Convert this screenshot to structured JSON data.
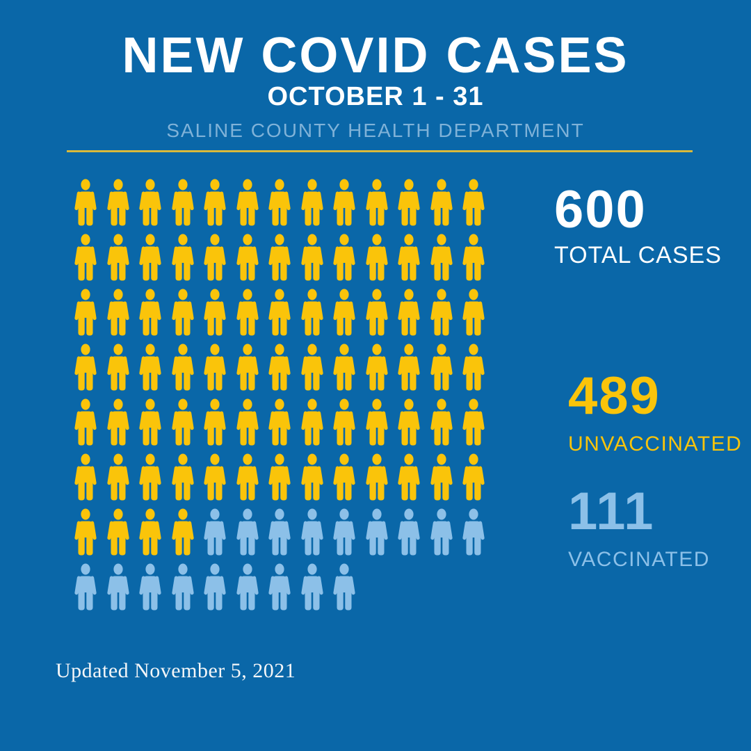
{
  "colors": {
    "background": "#0A67A8",
    "accent_yellow": "#FAC40A",
    "accent_light_blue": "#8CC0E8",
    "subtitle_blue": "#7FB2D8",
    "divider_gold": "#D9B93B",
    "white": "#FFFFFF"
  },
  "header": {
    "title": "NEW COVID CASES",
    "date_range": "OCTOBER 1 - 31",
    "organization": "SALINE COUNTY HEALTH DEPARTMENT"
  },
  "stats": {
    "total": {
      "value": "600",
      "label": "TOTAL CASES"
    },
    "unvaccinated": {
      "value": "489",
      "label": "UNVACCINATED"
    },
    "vaccinated": {
      "value": "111",
      "label": "VACCINATED"
    }
  },
  "footer": {
    "updated": "Updated November 5, 2021"
  },
  "chart_data": {
    "type": "pictogram",
    "title": "NEW COVID CASES",
    "subtitle": "OCTOBER 1 - 31",
    "source": "SALINE COUNTY HEALTH DEPARTMENT",
    "categories": [
      "Unvaccinated",
      "Vaccinated"
    ],
    "values": [
      489,
      111
    ],
    "total": 600,
    "legend_position": "right",
    "icons": {
      "total": 100,
      "unvaccinated": 82,
      "vaccinated": 18,
      "columns": 13,
      "rows": 8,
      "last_row_count": 9
    },
    "icon_colors": {
      "unvaccinated": "#FAC40A",
      "vaccinated": "#8CC0E8"
    }
  }
}
